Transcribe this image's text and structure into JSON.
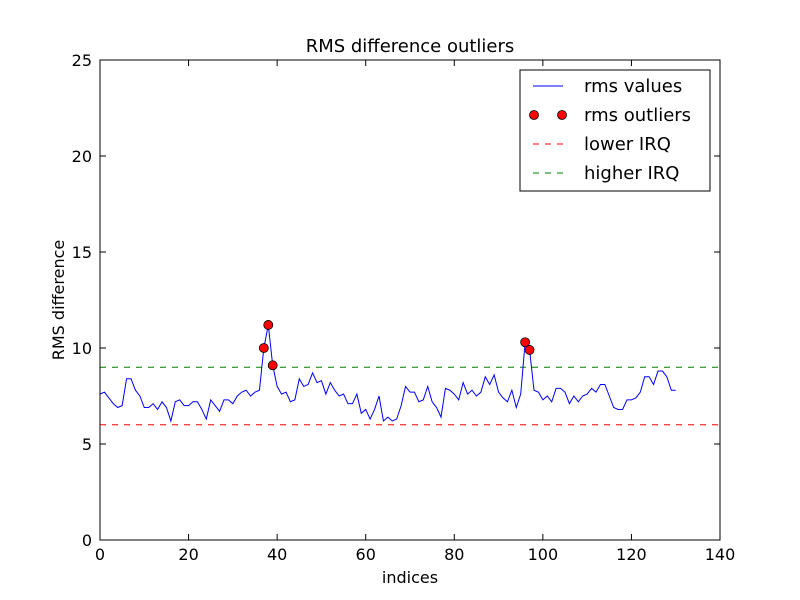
{
  "chart_data": {
    "type": "line",
    "title": "RMS difference outliers",
    "xlabel": "indices",
    "ylabel": "RMS difference",
    "xlim": [
      0,
      140
    ],
    "ylim": [
      0,
      25
    ],
    "xticks": [
      0,
      20,
      40,
      60,
      80,
      100,
      120,
      140
    ],
    "yticks": [
      0,
      5,
      10,
      15,
      20,
      25
    ],
    "grid": false,
    "legend_position": "top-right",
    "series": [
      {
        "name": "rms values",
        "kind": "line",
        "color": "#0000ff",
        "x": [
          0,
          1,
          2,
          3,
          4,
          5,
          6,
          7,
          8,
          9,
          10,
          11,
          12,
          13,
          14,
          15,
          16,
          17,
          18,
          19,
          20,
          21,
          22,
          23,
          24,
          25,
          26,
          27,
          28,
          29,
          30,
          31,
          32,
          33,
          34,
          35,
          36,
          37,
          38,
          39,
          40,
          41,
          42,
          43,
          44,
          45,
          46,
          47,
          48,
          49,
          50,
          51,
          52,
          53,
          54,
          55,
          56,
          57,
          58,
          59,
          60,
          61,
          62,
          63,
          64,
          65,
          66,
          67,
          68,
          69,
          70,
          71,
          72,
          73,
          74,
          75,
          76,
          77,
          78,
          79,
          80,
          81,
          82,
          83,
          84,
          85,
          86,
          87,
          88,
          89,
          90,
          91,
          92,
          93,
          94,
          95,
          96,
          97,
          98,
          99,
          100,
          101,
          102,
          103,
          104,
          105,
          106,
          107,
          108,
          109,
          110,
          111,
          112,
          113,
          114,
          115,
          116,
          117,
          118,
          119,
          120,
          121,
          122,
          123,
          124,
          125,
          126,
          127,
          128,
          129,
          130
        ],
        "y": [
          7.6,
          7.7,
          7.4,
          7.1,
          6.9,
          7.0,
          8.4,
          8.4,
          7.8,
          7.5,
          6.9,
          6.9,
          7.1,
          6.8,
          7.2,
          6.9,
          6.2,
          7.2,
          7.3,
          7.0,
          7.0,
          7.2,
          7.2,
          6.8,
          6.3,
          7.3,
          7.0,
          6.7,
          7.3,
          7.3,
          7.1,
          7.5,
          7.7,
          7.8,
          7.5,
          7.7,
          7.8,
          10.0,
          11.2,
          9.1,
          8.0,
          7.6,
          7.7,
          7.2,
          7.3,
          8.4,
          8.0,
          8.1,
          8.7,
          8.2,
          8.3,
          7.6,
          8.2,
          7.8,
          7.5,
          7.6,
          7.1,
          7.1,
          7.6,
          6.6,
          6.8,
          6.3,
          6.8,
          7.5,
          6.2,
          6.4,
          6.2,
          6.3,
          7.0,
          8.0,
          7.7,
          7.7,
          7.2,
          7.3,
          8.0,
          7.2,
          6.9,
          6.4,
          7.9,
          7.8,
          7.6,
          7.3,
          8.2,
          7.6,
          7.8,
          7.5,
          7.7,
          8.5,
          8.1,
          8.6,
          7.7,
          7.4,
          7.2,
          7.8,
          6.9,
          7.6,
          10.3,
          9.9,
          7.8,
          7.7,
          7.3,
          7.5,
          7.2,
          7.9,
          7.9,
          7.7,
          7.1,
          7.5,
          7.2,
          7.5,
          7.6,
          7.9,
          7.7,
          8.1,
          8.1,
          7.5,
          6.9,
          6.8,
          6.8,
          7.3,
          7.3,
          7.4,
          7.7,
          8.5,
          8.5,
          8.1,
          8.8,
          8.8,
          8.5,
          7.8,
          7.8
        ]
      },
      {
        "name": "rms outliers",
        "kind": "markers",
        "color": "#ff0000",
        "x": [
          37,
          38,
          39,
          96,
          97
        ],
        "y": [
          10.0,
          11.2,
          9.1,
          10.3,
          9.9
        ]
      },
      {
        "name": "lower IRQ",
        "kind": "hline",
        "color": "#ff0000",
        "y": 6.0
      },
      {
        "name": "higher IRQ",
        "kind": "hline",
        "color": "#008000",
        "y": 9.0
      }
    ]
  }
}
